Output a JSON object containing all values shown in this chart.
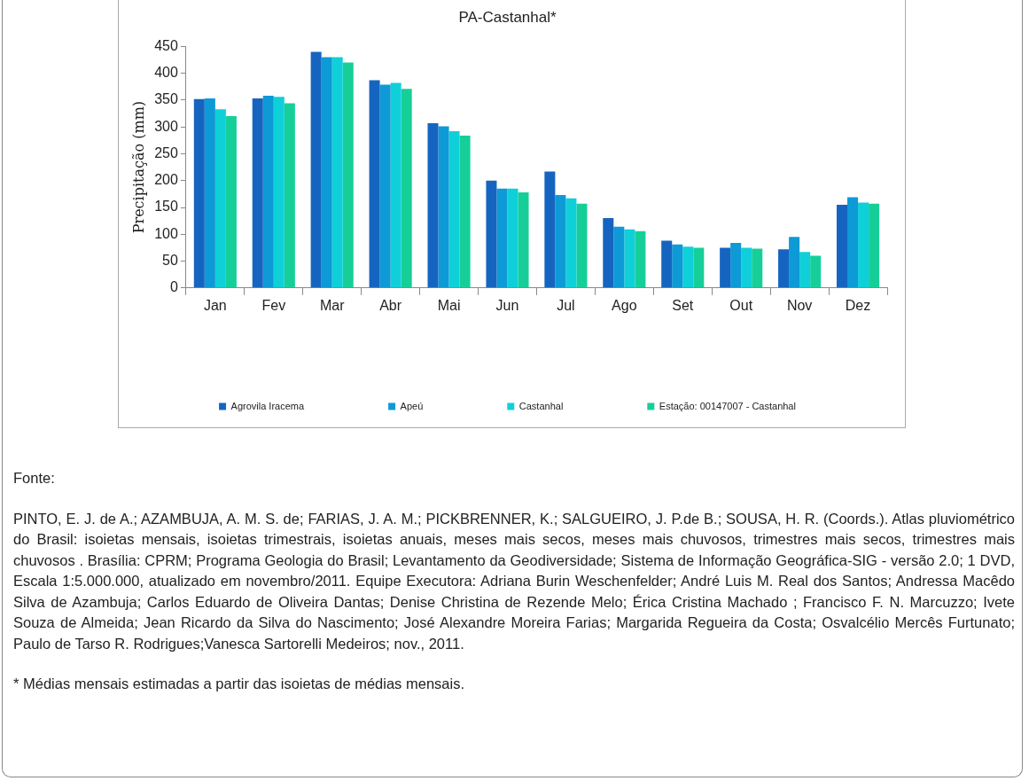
{
  "chart_data": {
    "type": "bar",
    "title": "PA-Castanhal*",
    "ylabel": "Precipitação (mm)",
    "categories": [
      "Jan",
      "Fev",
      "Mar",
      "Abr",
      "Mai",
      "Jun",
      "Jul",
      "Ago",
      "Set",
      "Out",
      "Nov",
      "Dez"
    ],
    "series": [
      {
        "name": "Agrovila Iracema",
        "color": "#1565c0",
        "values": [
          352,
          353,
          440,
          387,
          307,
          200,
          217,
          130,
          88,
          75,
          72,
          155
        ]
      },
      {
        "name": "Apeú",
        "color": "#0d9ad6",
        "values": [
          353,
          358,
          430,
          379,
          301,
          185,
          173,
          114,
          81,
          84,
          95,
          169
        ]
      },
      {
        "name": "Castanhal",
        "color": "#0fd0d8",
        "values": [
          333,
          356,
          430,
          382,
          292,
          185,
          167,
          109,
          77,
          75,
          67,
          159
        ]
      },
      {
        "name": "Estação: 00147007 - Castanhal",
        "color": "#16cf98",
        "values": [
          320,
          344,
          420,
          371,
          284,
          178,
          157,
          106,
          75,
          73,
          60,
          157
        ]
      }
    ],
    "ylim": [
      0,
      450
    ],
    "yticks": [
      0,
      50,
      100,
      150,
      200,
      250,
      300,
      350,
      400,
      450
    ],
    "legend": "bottom",
    "annotations": [
      "Fonte:",
      "PINTO, E. J. de A.; AZAMBUJA, A. M. S. de; FARIAS, J. A. M.; PICKBRENNER, K.; SALGUEIRO, J. P.de B.; SOUSA, H. R. (Coords.). Atlas pluviométrico do Brasil: isoietas mensais, isoietas trimestrais, isoietas anuais, meses mais secos, meses mais chuvosos, trimestres mais secos, trimestres mais chuvosos . Brasília: CPRM; Programa Geologia do Brasil; Levantamento da Geodiversidade; Sistema de Informação Geográfica-SIG - versão 2.0; 1 DVD, Escala 1:5.000.000, atualizado em novembro/2011. Equipe Executora: Adriana Burin Weschenfelder; André Luis M. Real dos Santos; Andressa Macêdo Silva de Azambuja; Carlos Eduardo de Oliveira Dantas; Denise Christina de Rezende Melo; Érica Cristina Machado ; Francisco F. N. Marcuzzo; Ivete Souza de Almeida; Jean Ricardo da Silva do Nascimento; José Alexandre Moreira Farias; Margarida Regueira da Costa; Osvalcélio Mercês Furtunato; Paulo de Tarso R. Rodrigues;Vanesca Sartorelli Medeiros; nov., 2011.",
      "* Médias mensais estimadas a partir das isoietas de médias mensais."
    ]
  }
}
